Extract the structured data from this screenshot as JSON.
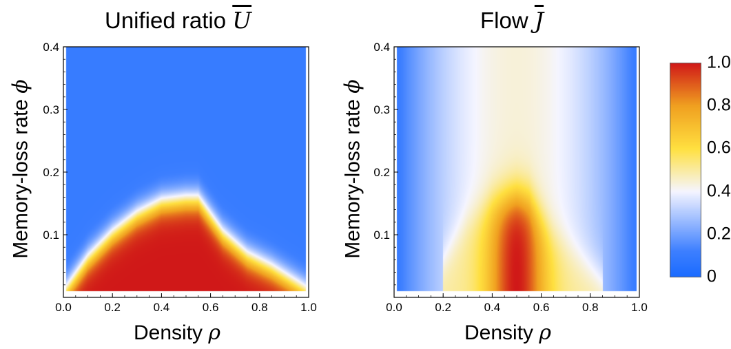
{
  "panels": {
    "left": {
      "title_text": "Unified ratio ",
      "title_symbol": "U",
      "xlabel_text": "Density ",
      "xlabel_symbol": "ρ",
      "ylabel_text": "Memory-loss rate ",
      "ylabel_symbol": "ϕ"
    },
    "right": {
      "title_text": "Flow ",
      "title_symbol": "J",
      "xlabel_text": "Density ",
      "xlabel_symbol": "ρ",
      "ylabel_text": "Memory-loss rate ",
      "ylabel_symbol": "ϕ"
    }
  },
  "chart_data": [
    {
      "type": "heatmap",
      "title": "Unified ratio U",
      "xlabel": "Density ρ",
      "ylabel": "Memory-loss rate ϕ",
      "xlim": [
        0.0,
        1.0
      ],
      "ylim": [
        0.0,
        0.4
      ],
      "xticks": [
        "0.0",
        "0.2",
        "0.4",
        "0.6",
        "0.8",
        "1.0"
      ],
      "yticks": [
        "0.1",
        "0.2",
        "0.3",
        "0.4"
      ],
      "data_x_range": [
        0.01,
        0.99
      ],
      "data_y_range": [
        0.01,
        0.4
      ],
      "boundary": {
        "x": [
          0.01,
          0.1,
          0.2,
          0.3,
          0.4,
          0.5,
          0.55,
          0.65,
          0.75,
          0.85,
          0.99
        ],
        "phi": [
          0.01,
          0.06,
          0.1,
          0.13,
          0.15,
          0.155,
          0.155,
          0.1,
          0.065,
          0.045,
          0.01
        ]
      },
      "value_inside": 1.0,
      "value_outside": 0.1
    },
    {
      "type": "heatmap",
      "title": "Flow J",
      "xlabel": "Density ρ",
      "ylabel": "Memory-loss rate ϕ",
      "xlim": [
        0.0,
        1.0
      ],
      "ylim": [
        0.0,
        0.4
      ],
      "xticks": [
        "0.0",
        "0.2",
        "0.4",
        "0.6",
        "0.8",
        "1.0"
      ],
      "yticks": [
        "0.1",
        "0.2",
        "0.3",
        "0.4"
      ],
      "data_x_range": [
        0.01,
        0.99
      ],
      "data_y_range": [
        0.01,
        0.4
      ],
      "boundary": {
        "x": [
          0.2,
          0.3,
          0.4,
          0.5,
          0.55,
          0.65,
          0.75,
          0.85
        ],
        "phi": [
          0.06,
          0.12,
          0.15,
          0.16,
          0.155,
          0.1,
          0.065,
          0.03
        ]
      },
      "outside_formula": "0.4*(1 - (2*rho - 1)^2)",
      "inside_peak": 1.0
    }
  ],
  "colorbar": {
    "ticks": [
      "1.0",
      "0.8",
      "0.6",
      "0.4",
      "0.2",
      "0"
    ],
    "range": [
      0,
      1
    ],
    "stops": [
      {
        "v": 0.0,
        "color": "#1a6bff"
      },
      {
        "v": 0.12,
        "color": "#3d7fff"
      },
      {
        "v": 0.4,
        "color": "#f5f5ff"
      },
      {
        "v": 0.6,
        "color": "#ffe040"
      },
      {
        "v": 0.8,
        "color": "#f0a020"
      },
      {
        "v": 1.0,
        "color": "#d01818"
      }
    ]
  }
}
